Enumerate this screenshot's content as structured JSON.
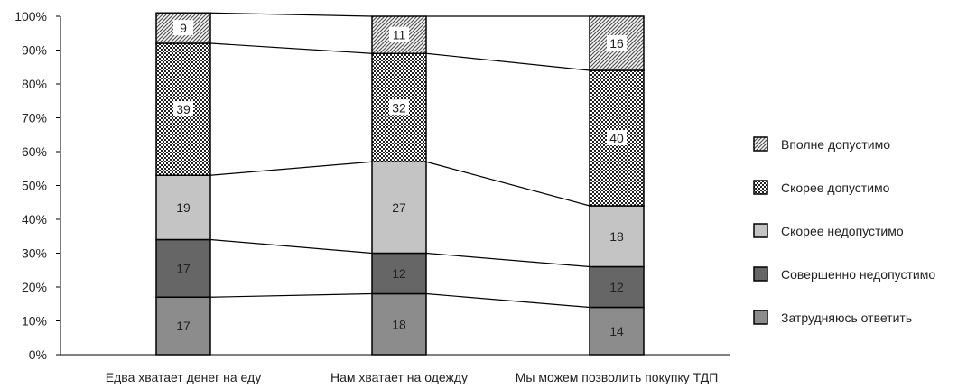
{
  "chart_data": {
    "type": "bar",
    "stacked": true,
    "percent": true,
    "categories": [
      "Едва хватает денег на еду",
      "Нам хватает на одежду",
      "Мы можем позволить покупку ТДП"
    ],
    "series": [
      {
        "name": "Затрудняюсь ответить",
        "values": [
          17,
          18,
          14
        ],
        "color": "#8c8c8c",
        "pattern": "solid"
      },
      {
        "name": "Совершенно недопустимо",
        "values": [
          17,
          12,
          12
        ],
        "color": "#666666",
        "pattern": "solid"
      },
      {
        "name": "Скорее недопустимо",
        "values": [
          19,
          27,
          18
        ],
        "color": "#c4c4c4",
        "pattern": "solid"
      },
      {
        "name": "Скорее допустимо",
        "values": [
          39,
          32,
          40
        ],
        "color": "#333333",
        "pattern": "checker"
      },
      {
        "name": "Вполне допустимо",
        "values": [
          9,
          11,
          16
        ],
        "color": "#555555",
        "pattern": "diagonal"
      }
    ],
    "legend_order": [
      "Вполне допустимо",
      "Скорее допустимо",
      "Скорее недопустимо",
      "Совершенно недопустимо",
      "Затрудняюсь ответить"
    ],
    "ylim": [
      0,
      100
    ],
    "yticks": [
      "0%",
      "10%",
      "20%",
      "30%",
      "40%",
      "50%",
      "60%",
      "70%",
      "80%",
      "90%",
      "100%"
    ],
    "series_lines": true,
    "legend_position": "right",
    "grid": false
  }
}
